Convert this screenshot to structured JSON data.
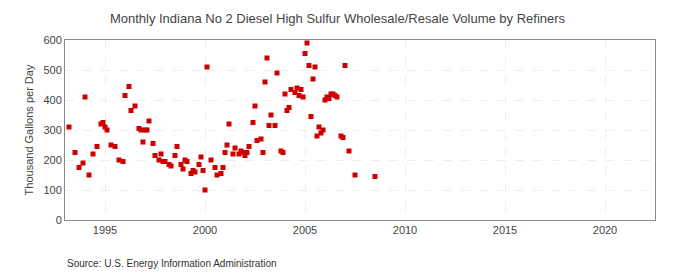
{
  "chart_data": {
    "type": "scatter",
    "title": "Monthly Indiana No 2 Diesel High Sulfur Wholesale/Resale Volume by Refiners",
    "ylabel": "Thousand Gallons per Day",
    "annotations": [
      "Source: U.S. Energy Information Administration"
    ],
    "color": "#cc0000",
    "marker": "square",
    "grid": true,
    "xlim": [
      1993.0,
      2022.5
    ],
    "ylim": [
      0,
      600
    ],
    "xticks": [
      1995,
      2000,
      2005,
      2010,
      2015,
      2020
    ],
    "yticks": [
      0,
      100,
      200,
      300,
      400,
      500,
      600
    ],
    "x": [
      1993.2,
      1993.5,
      1993.7,
      1993.9,
      1994.0,
      1994.2,
      1994.4,
      1994.6,
      1994.8,
      1994.9,
      1995.0,
      1995.1,
      1995.3,
      1995.5,
      1995.7,
      1995.9,
      1996.0,
      1996.2,
      1996.3,
      1996.5,
      1996.7,
      1996.8,
      1996.9,
      1997.0,
      1997.1,
      1997.2,
      1997.4,
      1997.5,
      1997.7,
      1997.8,
      1997.9,
      1998.0,
      1998.2,
      1998.3,
      1998.5,
      1998.6,
      1998.8,
      1998.9,
      1999.0,
      1999.1,
      1999.3,
      1999.4,
      1999.5,
      1999.7,
      1999.8,
      1999.9,
      2000.0,
      2000.1,
      2000.3,
      2000.5,
      2000.6,
      2000.8,
      2000.9,
      2001.0,
      2001.1,
      2001.2,
      2001.4,
      2001.5,
      2001.7,
      2001.8,
      2001.9,
      2002.0,
      2002.1,
      2002.2,
      2002.4,
      2002.5,
      2002.6,
      2002.8,
      2002.9,
      2003.0,
      2003.1,
      2003.2,
      2003.3,
      2003.5,
      2003.6,
      2003.8,
      2003.9,
      2004.0,
      2004.1,
      2004.2,
      2004.3,
      2004.5,
      2004.6,
      2004.7,
      2004.8,
      2004.9,
      2005.0,
      2005.1,
      2005.2,
      2005.3,
      2005.4,
      2005.5,
      2005.6,
      2005.7,
      2005.8,
      2005.9,
      2006.0,
      2006.1,
      2006.2,
      2006.3,
      2006.4,
      2006.5,
      2006.6,
      2006.8,
      2006.9,
      2007.0,
      2007.2,
      2007.5,
      2008.5
    ],
    "values": [
      310,
      225,
      175,
      190,
      410,
      150,
      220,
      245,
      320,
      325,
      310,
      300,
      250,
      245,
      200,
      195,
      415,
      445,
      365,
      380,
      305,
      300,
      260,
      300,
      300,
      330,
      255,
      215,
      200,
      220,
      195,
      195,
      185,
      180,
      215,
      245,
      185,
      170,
      200,
      195,
      155,
      165,
      160,
      185,
      210,
      165,
      100,
      510,
      200,
      175,
      150,
      155,
      175,
      225,
      250,
      320,
      220,
      240,
      220,
      230,
      225,
      215,
      225,
      245,
      325,
      380,
      265,
      270,
      225,
      460,
      540,
      315,
      350,
      315,
      490,
      230,
      225,
      420,
      365,
      375,
      435,
      425,
      440,
      415,
      435,
      410,
      555,
      590,
      515,
      345,
      470,
      510,
      280,
      310,
      290,
      300,
      400,
      410,
      405,
      420,
      420,
      415,
      410,
      280,
      275,
      515,
      230,
      150,
      145
    ]
  }
}
